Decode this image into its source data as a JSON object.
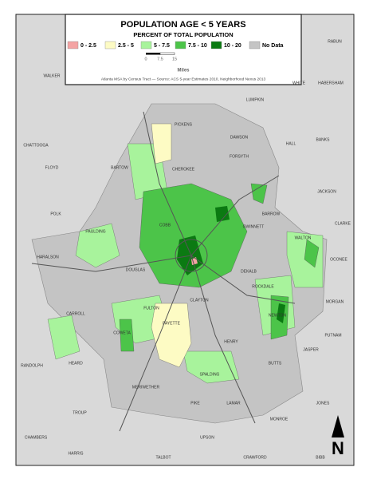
{
  "title": "POPULATION AGE < 5 YEARS",
  "subtitle": "PERCENT OF TOTAL POPULATION",
  "legend": [
    {
      "label": "0 - 2.5",
      "color": "#f4a3a3"
    },
    {
      "label": "2.5 - 5",
      "color": "#fdfbc4"
    },
    {
      "label": "5 - 7.5",
      "color": "#a8f39c"
    },
    {
      "label": "7.5 - 10",
      "color": "#4cc449"
    },
    {
      "label": "10 - 20",
      "color": "#0b7a12"
    },
    {
      "label": "No Data",
      "color": "#c4c4c4"
    }
  ],
  "scale": {
    "ticks": [
      0,
      7.5,
      15
    ],
    "unit": "Miles"
  },
  "source": "Atlanta MSA by Census Tract — Source: ACS 5-year Estimates 2010, Neighborhood Nexus 2013",
  "counties": [
    "WALKER",
    "CHATTOOGA",
    "FLOYD",
    "POLK",
    "HARALSON",
    "CARROLL",
    "HEARD",
    "RANDOLPH",
    "TROUP",
    "CHAMBERS",
    "HARRIS",
    "TALBOT",
    "UPSON",
    "MERIWETHER",
    "PIKE",
    "LAMAR",
    "MONROE",
    "JONES",
    "BUTTS",
    "JASPER",
    "PUTNAM",
    "MORGAN",
    "OCONEE",
    "CLARKE",
    "JACKSON",
    "BANKS",
    "HALL",
    "LUMPKIN",
    "DAWSON",
    "HABERSHAM",
    "WHITE",
    "RABUN",
    "PICKENS",
    "FORSYTH",
    "CHEROKEE",
    "BARTOW",
    "PAULDING",
    "COBB",
    "GWINNETT",
    "BARROW",
    "WALTON",
    "DOUGLAS",
    "FULTON",
    "DEKALB",
    "ROCKDALE",
    "NEWTON",
    "CLAYTON",
    "HENRY",
    "FAYETTE",
    "COWETA",
    "SPALDING",
    "CRAWFORD",
    "BIBB"
  ],
  "north": "N"
}
